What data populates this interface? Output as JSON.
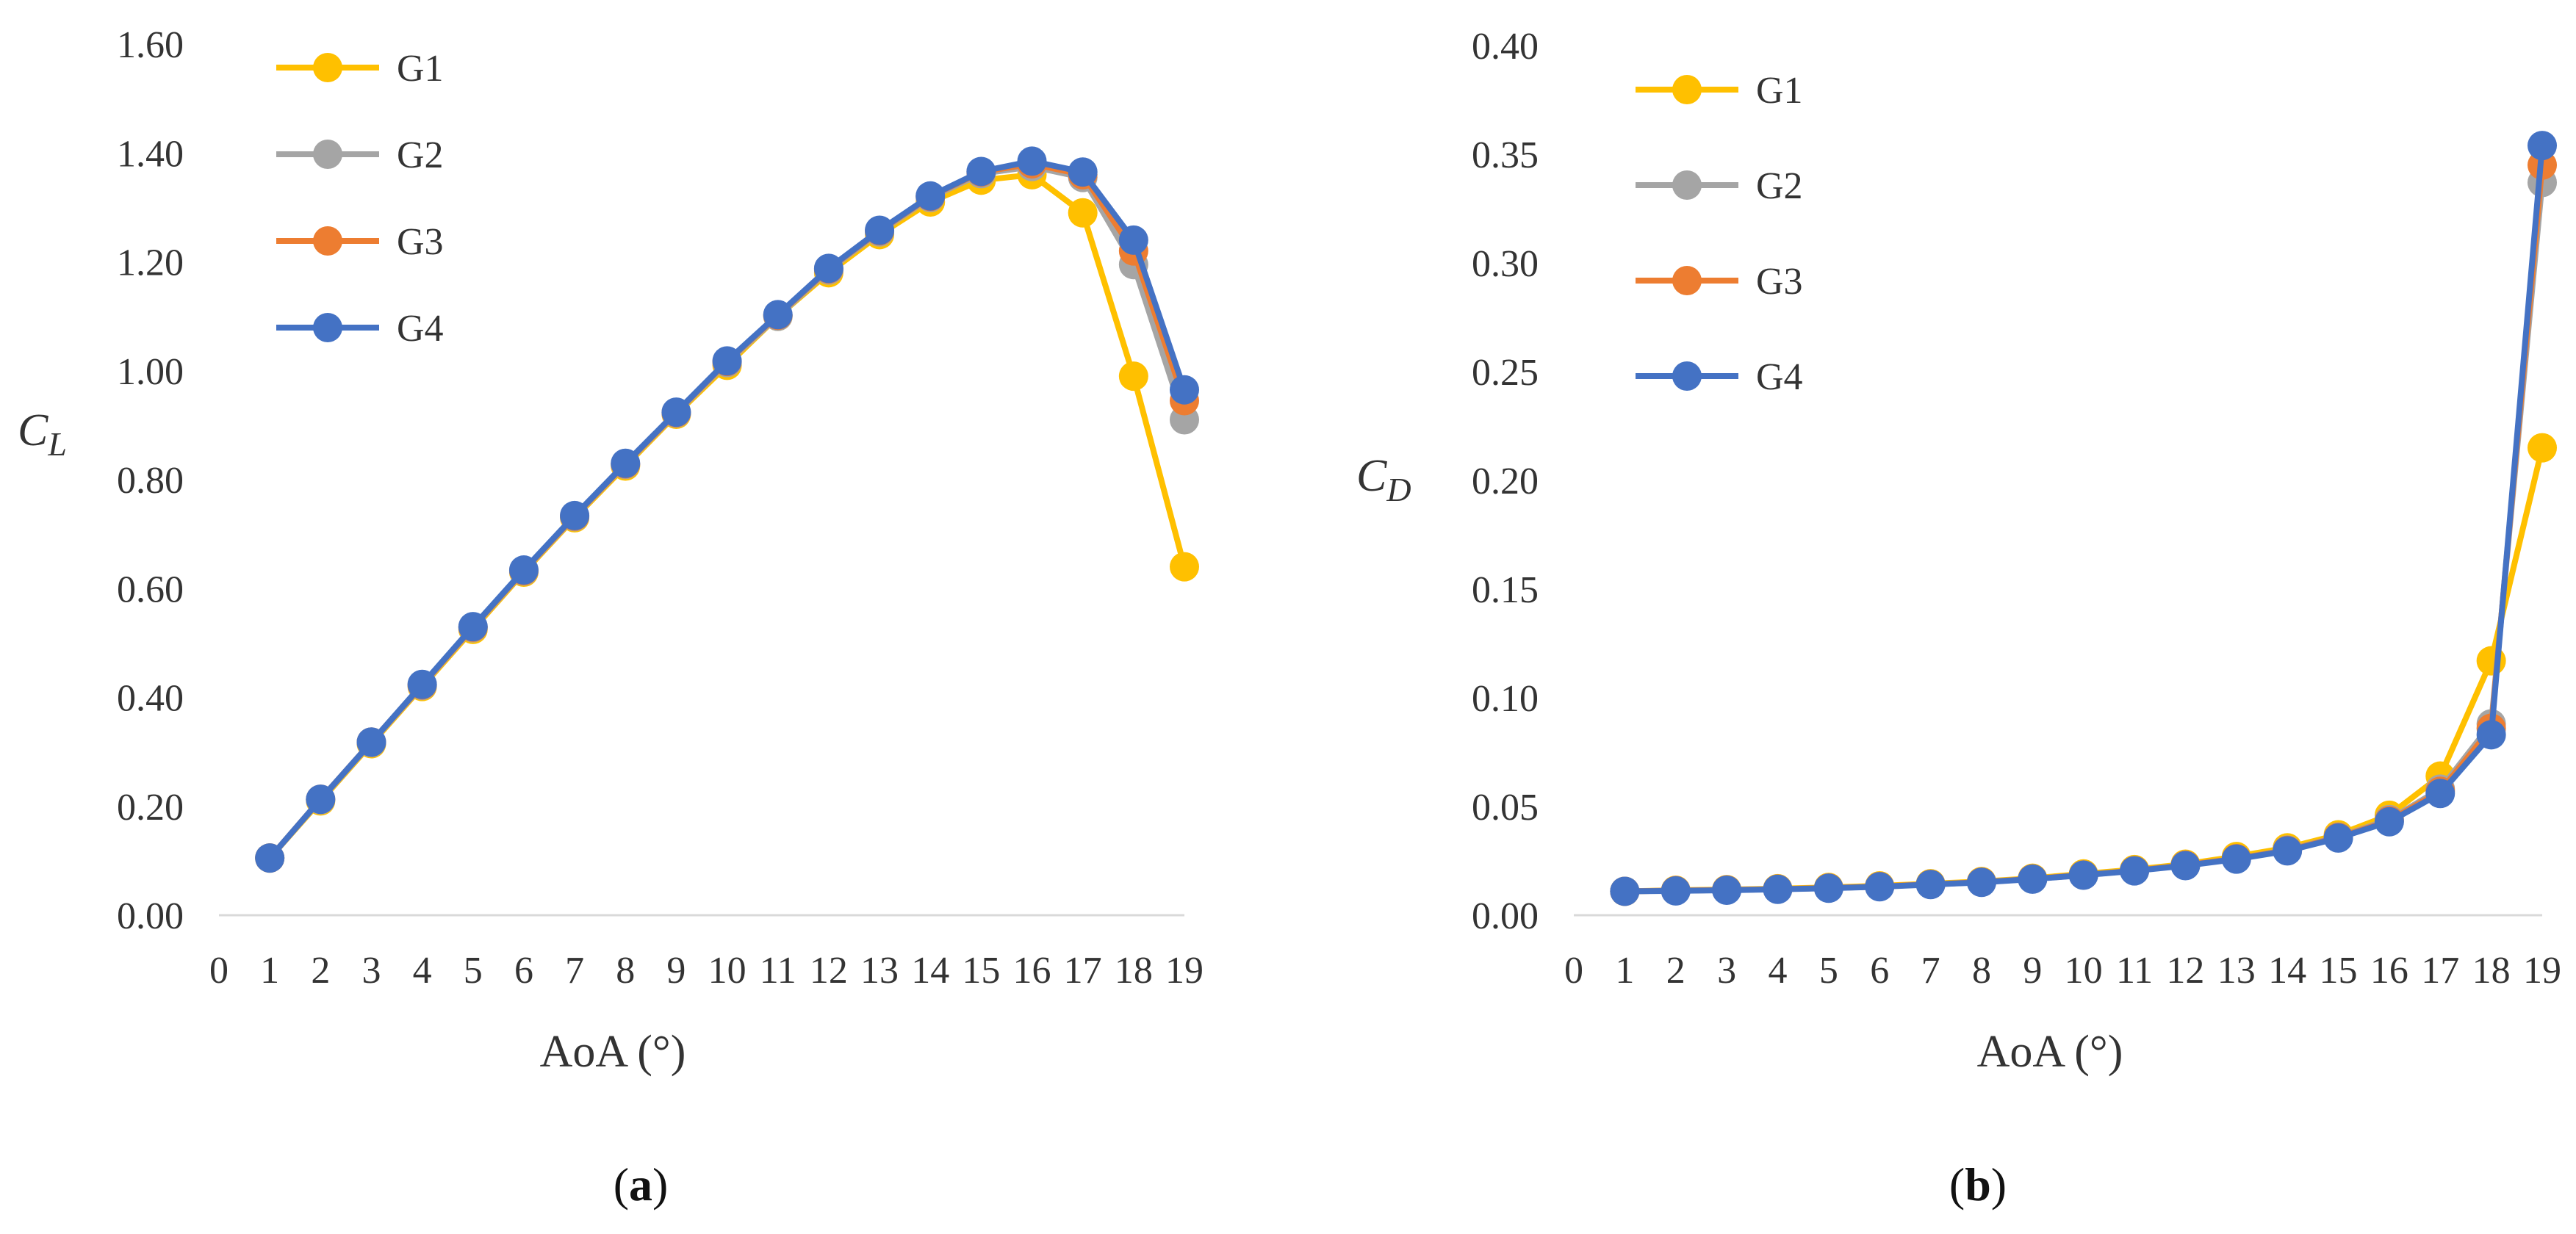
{
  "colors": {
    "G1": "#FFC000",
    "G2": "#A5A5A5",
    "G3": "#ED7D31",
    "G4": "#4472C4",
    "axis": "#D9D9D9",
    "text": "#333333"
  },
  "chart_data": [
    {
      "type": "line",
      "panel": "a",
      "caption_open": "(",
      "caption_letter": "a",
      "caption_close": ")",
      "xlabel": "AoA (°)",
      "ylabel_main": "C",
      "ylabel_sub": "L",
      "x": [
        1,
        2,
        3,
        4,
        5,
        6,
        7,
        8,
        9,
        10,
        11,
        12,
        13,
        14,
        15,
        16,
        17,
        18,
        19
      ],
      "xticks": [
        0,
        1,
        2,
        3,
        4,
        5,
        6,
        7,
        8,
        9,
        10,
        11,
        12,
        13,
        14,
        15,
        16,
        17,
        18,
        19
      ],
      "xlim": [
        0,
        19
      ],
      "ylim": [
        0,
        1.6
      ],
      "yticks": [
        "0.00",
        "0.20",
        "0.40",
        "0.60",
        "0.80",
        "1.00",
        "1.20",
        "1.40",
        "1.60"
      ],
      "legend_position": "top-left",
      "series": [
        {
          "name": "G1",
          "color_key": "G1",
          "values": [
            0.105,
            0.21,
            0.315,
            0.42,
            0.525,
            0.63,
            0.73,
            0.825,
            0.92,
            1.01,
            1.1,
            1.18,
            1.25,
            1.31,
            1.35,
            1.36,
            1.29,
            0.99,
            0.64
          ]
        },
        {
          "name": "G2",
          "color_key": "G2",
          "values": [
            0.105,
            0.212,
            0.317,
            0.422,
            0.528,
            0.632,
            0.732,
            0.828,
            0.922,
            1.015,
            1.1,
            1.185,
            1.255,
            1.318,
            1.362,
            1.375,
            1.355,
            1.195,
            0.91
          ]
        },
        {
          "name": "G3",
          "color_key": "G3",
          "values": [
            0.105,
            0.213,
            0.318,
            0.423,
            0.529,
            0.633,
            0.733,
            0.829,
            0.923,
            1.017,
            1.102,
            1.187,
            1.257,
            1.32,
            1.365,
            1.38,
            1.36,
            1.22,
            0.945
          ]
        },
        {
          "name": "G4",
          "color_key": "G4",
          "values": [
            0.105,
            0.213,
            0.318,
            0.424,
            0.53,
            0.634,
            0.734,
            0.83,
            0.924,
            1.018,
            1.103,
            1.188,
            1.258,
            1.321,
            1.366,
            1.385,
            1.365,
            1.24,
            0.965
          ]
        }
      ]
    },
    {
      "type": "line",
      "panel": "b",
      "caption_open": "(",
      "caption_letter": "b",
      "caption_close": ")",
      "xlabel": "AoA (°)",
      "ylabel_main": "C",
      "ylabel_sub": "D",
      "x": [
        1,
        2,
        3,
        4,
        5,
        6,
        7,
        8,
        9,
        10,
        11,
        12,
        13,
        14,
        15,
        16,
        17,
        18,
        19
      ],
      "xticks": [
        0,
        1,
        2,
        3,
        4,
        5,
        6,
        7,
        8,
        9,
        10,
        11,
        12,
        13,
        14,
        15,
        16,
        17,
        18,
        19
      ],
      "xlim": [
        0,
        19
      ],
      "ylim": [
        0,
        0.4
      ],
      "yticks": [
        "0.00",
        "0.05",
        "0.10",
        "0.15",
        "0.20",
        "0.25",
        "0.30",
        "0.35",
        "0.40"
      ],
      "legend_position": "top-left",
      "series": [
        {
          "name": "G1",
          "color_key": "G1",
          "values": [
            0.011,
            0.0115,
            0.0118,
            0.0122,
            0.0128,
            0.0135,
            0.0145,
            0.0155,
            0.017,
            0.019,
            0.021,
            0.0235,
            0.027,
            0.031,
            0.037,
            0.046,
            0.064,
            0.117,
            0.215
          ]
        },
        {
          "name": "G2",
          "color_key": "G2",
          "values": [
            0.011,
            0.0113,
            0.0116,
            0.012,
            0.0125,
            0.0132,
            0.0142,
            0.0152,
            0.0167,
            0.0185,
            0.0205,
            0.023,
            0.026,
            0.03,
            0.036,
            0.044,
            0.058,
            0.088,
            0.337
          ]
        },
        {
          "name": "G3",
          "color_key": "G3",
          "values": [
            0.011,
            0.0113,
            0.0116,
            0.012,
            0.0125,
            0.0132,
            0.0142,
            0.0152,
            0.0167,
            0.0185,
            0.0205,
            0.023,
            0.026,
            0.0298,
            0.0358,
            0.0435,
            0.057,
            0.086,
            0.345
          ]
        },
        {
          "name": "G4",
          "color_key": "G4",
          "values": [
            0.011,
            0.0112,
            0.0115,
            0.0119,
            0.0124,
            0.0131,
            0.0141,
            0.0151,
            0.0166,
            0.0184,
            0.0204,
            0.0228,
            0.0258,
            0.0296,
            0.0355,
            0.043,
            0.056,
            0.083,
            0.354
          ]
        }
      ]
    }
  ]
}
